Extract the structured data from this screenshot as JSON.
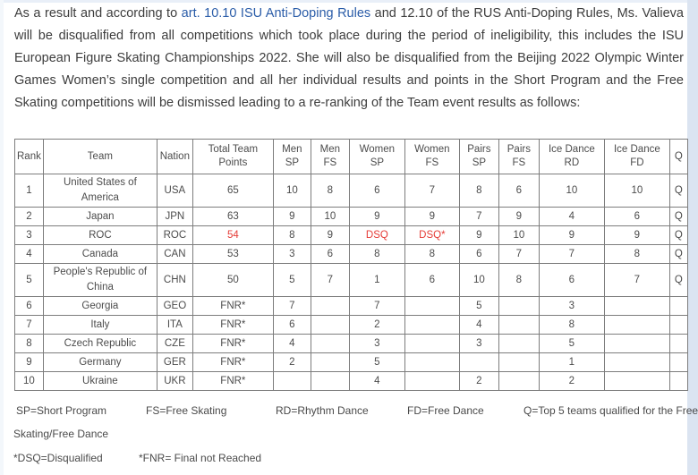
{
  "paragraph": {
    "text_before": "As a result and according to ",
    "link_text": "art. 10.10 ISU Anti-Doping Rules",
    "text_after": " and 12.10 of the RUS Anti-Doping Rules, Ms. Valieva will be disqualified from all competitions which took place during the period of ineligibility, this includes the ISU European Figure Skating Championships 2022. She will also be disqualified from the Beijing 2022 Olympic Winter Games Women’s single competition and all her individual results and points in the Short Program and the Free Skating competitions will be dismissed leading to a re-ranking of the Team event results as follows:"
  },
  "colors": {
    "link_blue": "#2a5ca8",
    "disqualified_red": "#e53c37",
    "table_border_gray": "#7d7d7d",
    "body_text": "#3d3d3d"
  },
  "table": {
    "headers": [
      "Rank",
      "Team",
      "Nation",
      "Total Team Points",
      "Men SP",
      "Men FS",
      "Women SP",
      "Women FS",
      "Pairs SP",
      "Pairs FS",
      "Ice Dance RD",
      "Ice Dance FD",
      "Q"
    ],
    "rows": [
      {
        "cells": [
          "1",
          "United States of America",
          "USA",
          "65",
          "10",
          "8",
          "6",
          "7",
          "8",
          "6",
          "10",
          "10",
          "Q"
        ]
      },
      {
        "cells": [
          "2",
          "Japan",
          "JPN",
          "63",
          "9",
          "10",
          "9",
          "9",
          "7",
          "9",
          "4",
          "6",
          "Q"
        ]
      },
      {
        "cells": [
          "3",
          "ROC",
          "ROC",
          "54",
          "8",
          "9",
          "DSQ",
          "DSQ*",
          "9",
          "10",
          "9",
          "9",
          "Q"
        ],
        "red": [
          3,
          6,
          7
        ]
      },
      {
        "cells": [
          "4",
          "Canada",
          "CAN",
          "53",
          "3",
          "6",
          "8",
          "8",
          "6",
          "7",
          "7",
          "8",
          "Q"
        ]
      },
      {
        "cells": [
          "5",
          "People's Republic of China",
          "CHN",
          "50",
          "5",
          "7",
          "1",
          "6",
          "10",
          "8",
          "6",
          "7",
          "Q"
        ]
      },
      {
        "cells": [
          "6",
          "Georgia",
          "GEO",
          "FNR*",
          "7",
          "",
          "7",
          "",
          "5",
          "",
          "3",
          "",
          ""
        ]
      },
      {
        "cells": [
          "7",
          "Italy",
          "ITA",
          "FNR*",
          "6",
          "",
          "2",
          "",
          "4",
          "",
          "8",
          "",
          ""
        ]
      },
      {
        "cells": [
          "8",
          "Czech Republic",
          "CZE",
          "FNR*",
          "4",
          "",
          "3",
          "",
          "3",
          "",
          "5",
          "",
          ""
        ]
      },
      {
        "cells": [
          "9",
          "Germany",
          "GER",
          "FNR*",
          "2",
          "",
          "5",
          "",
          "",
          "",
          "1",
          "",
          ""
        ]
      },
      {
        "cells": [
          "10",
          "Ukraine",
          "UKR",
          "FNR*",
          "",
          "",
          "4",
          "",
          "2",
          "",
          "2",
          "",
          ""
        ]
      }
    ]
  },
  "legend": {
    "items": [
      "SP=Short Program",
      "FS=Free Skating",
      "RD=Rhythm Dance",
      "FD=Free Dance",
      "Q=Top 5 teams qualified for the Free"
    ],
    "continuation": "Skating/Free Dance",
    "notes": [
      "*DSQ=Disqualified",
      "*FNR= Final not Reached"
    ]
  }
}
